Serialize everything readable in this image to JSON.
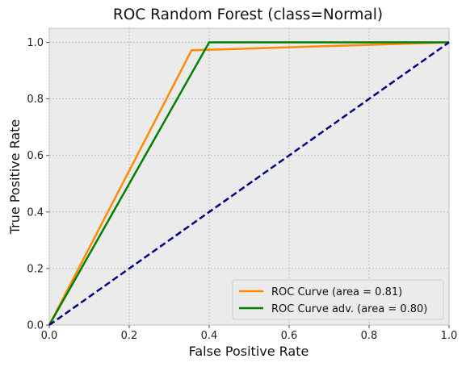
{
  "chart_data": {
    "type": "line",
    "title": "ROC Random Forest (class=Normal)",
    "xlabel": "False Positive Rate",
    "ylabel": "True Positive Rate",
    "xlim": [
      0.0,
      1.0
    ],
    "ylim": [
      0.0,
      1.05
    ],
    "x_ticks": [
      "0.0",
      "0.2",
      "0.4",
      "0.6",
      "0.8",
      "1.0"
    ],
    "y_ticks": [
      "0.0",
      "0.2",
      "0.4",
      "0.6",
      "0.8",
      "1.0"
    ],
    "grid": true,
    "legend_position": "lower-right",
    "series": [
      {
        "name": "ROC Curve (area = 0.81)",
        "color": "#ff8c00",
        "style": "solid",
        "x": [
          0.0,
          0.356,
          1.0
        ],
        "y": [
          0.0,
          0.972,
          1.0
        ]
      },
      {
        "name": "ROC Curve adv. (area = 0.80)",
        "color": "#008000",
        "style": "solid",
        "x": [
          0.0,
          0.4,
          1.0
        ],
        "y": [
          0.0,
          1.0,
          1.0
        ]
      },
      {
        "name": "",
        "color": "#000080",
        "style": "dashed",
        "x": [
          0.0,
          1.0
        ],
        "y": [
          0.0,
          1.0
        ]
      }
    ],
    "background_color": "#ebebeb",
    "grid_color": "#b0b0b0"
  }
}
